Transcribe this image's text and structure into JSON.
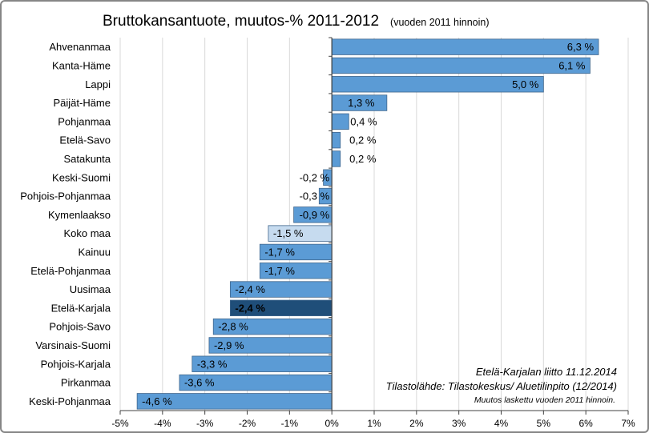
{
  "chart_data": {
    "type": "bar",
    "orientation": "horizontal",
    "title": "Bruttokansantuote, muutos-% 2011-2012",
    "subtitle": "(vuoden 2011 hinnoin)",
    "categories": [
      "Ahvenanmaa",
      "Kanta-Häme",
      "Lappi",
      "Päijät-Häme",
      "Pohjanmaa",
      "Etelä-Savo",
      "Satakunta",
      "Keski-Suomi",
      "Pohjois-Pohjanmaa",
      "Kymenlaakso",
      "Koko maa",
      "Kainuu",
      "Etelä-Pohjanmaa",
      "Uusimaa",
      "Etelä-Karjala",
      "Pohjois-Savo",
      "Varsinais-Suomi",
      "Pohjois-Karjala",
      "Pirkanmaa",
      "Keski-Pohjanmaa"
    ],
    "values": [
      6.3,
      6.1,
      5.0,
      1.3,
      0.4,
      0.2,
      0.2,
      -0.2,
      -0.3,
      -0.9,
      -1.5,
      -1.7,
      -1.7,
      -2.4,
      -2.4,
      -2.8,
      -2.9,
      -3.3,
      -3.6,
      -4.6
    ],
    "value_labels": [
      "6,3 %",
      "6,1 %",
      "5,0 %",
      "1,3 %",
      "0,4 %",
      "0,2 %",
      "0,2 %",
      "-0,2 %",
      "-0,3 %",
      "-0,9 %",
      "-1,5 %",
      "-1,7 %",
      "-1,7 %",
      "-2,4 %",
      "-2,4 %",
      "-2,8 %",
      "-2,9 %",
      "-3,3 %",
      "-3,6 %",
      "-4,6 %"
    ],
    "xlim": [
      -5,
      7
    ],
    "x_ticks": [
      -5,
      -4,
      -3,
      -2,
      -1,
      0,
      1,
      2,
      3,
      4,
      5,
      6,
      7
    ],
    "x_tick_labels": [
      "-5%",
      "-4%",
      "-3%",
      "-2%",
      "-1%",
      "0%",
      "1%",
      "2%",
      "3%",
      "4%",
      "5%",
      "6%",
      "7%"
    ],
    "grid": true,
    "colors": {
      "bar": "#5b9bd5",
      "bar_highlight": "#1f4e79",
      "bar_koko_maa": "#c6dbef",
      "bar_edge": "#40668c",
      "grid": "#d9d9d9",
      "axis": "#404040"
    },
    "highlight_category": "Etelä-Karjala",
    "reference_category": "Koko maa"
  },
  "notes": {
    "line1": "Etelä-Karjalan liitto 11.12.2014",
    "line2": "Tilastolähde: Tilastokeskus/ Aluetilinpito (12/2014)",
    "line3": "Muutos laskettu vuoden 2011 hinnoin."
  }
}
